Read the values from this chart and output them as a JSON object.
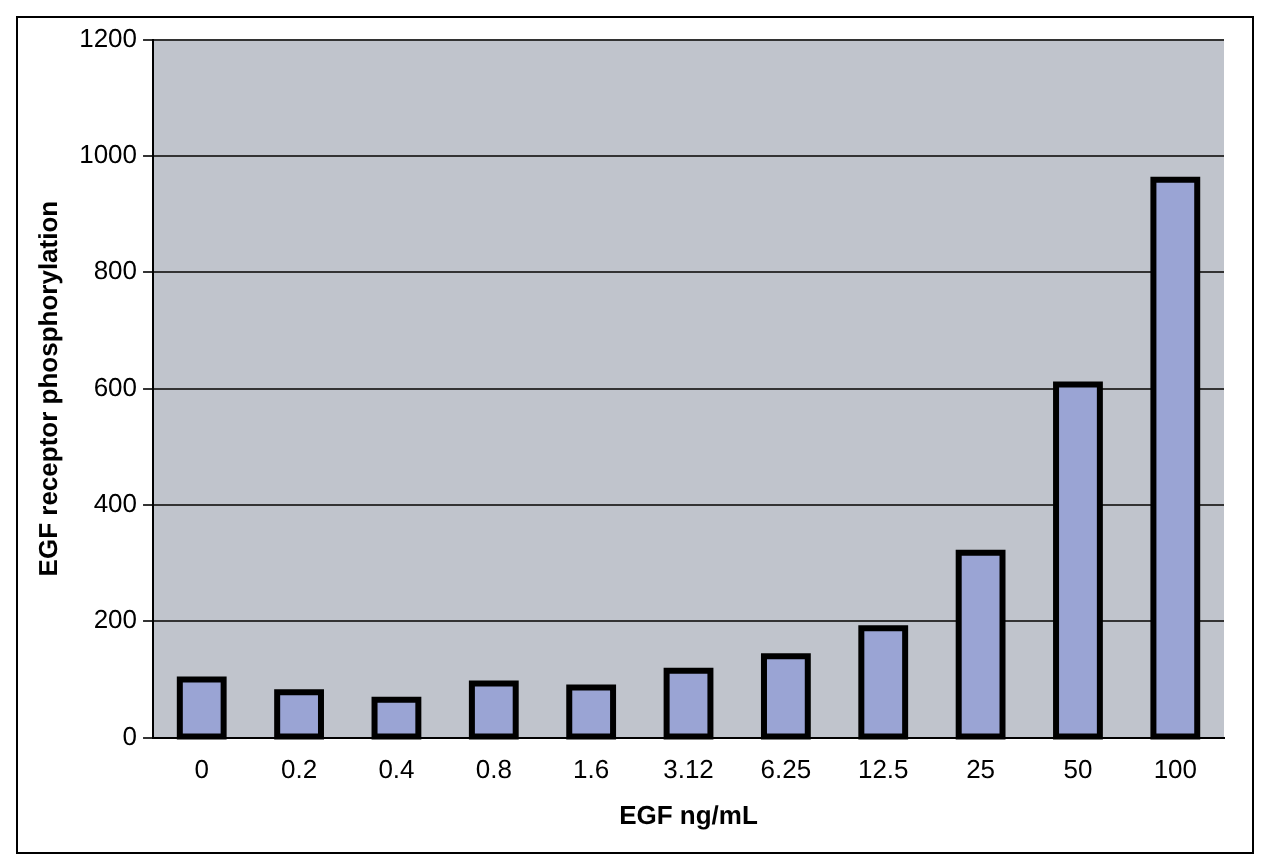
{
  "chart_data": {
    "type": "bar",
    "xlabel": "EGF ng/mL",
    "ylabel": "EGF receptor phosphorylation",
    "categories": [
      "0",
      "0.2",
      "0.4",
      "0.8",
      "1.6",
      "3.12",
      "6.25",
      "12.5",
      "25",
      "50",
      "100"
    ],
    "values": [
      100,
      78,
      65,
      93,
      86,
      115,
      140,
      188,
      318,
      607,
      959
    ],
    "color": "#9aa4d4",
    "ylim": [
      0,
      1200
    ],
    "yticks": [
      0,
      200,
      400,
      600,
      800,
      1000,
      1200
    ],
    "grid": "y",
    "legend": false
  }
}
